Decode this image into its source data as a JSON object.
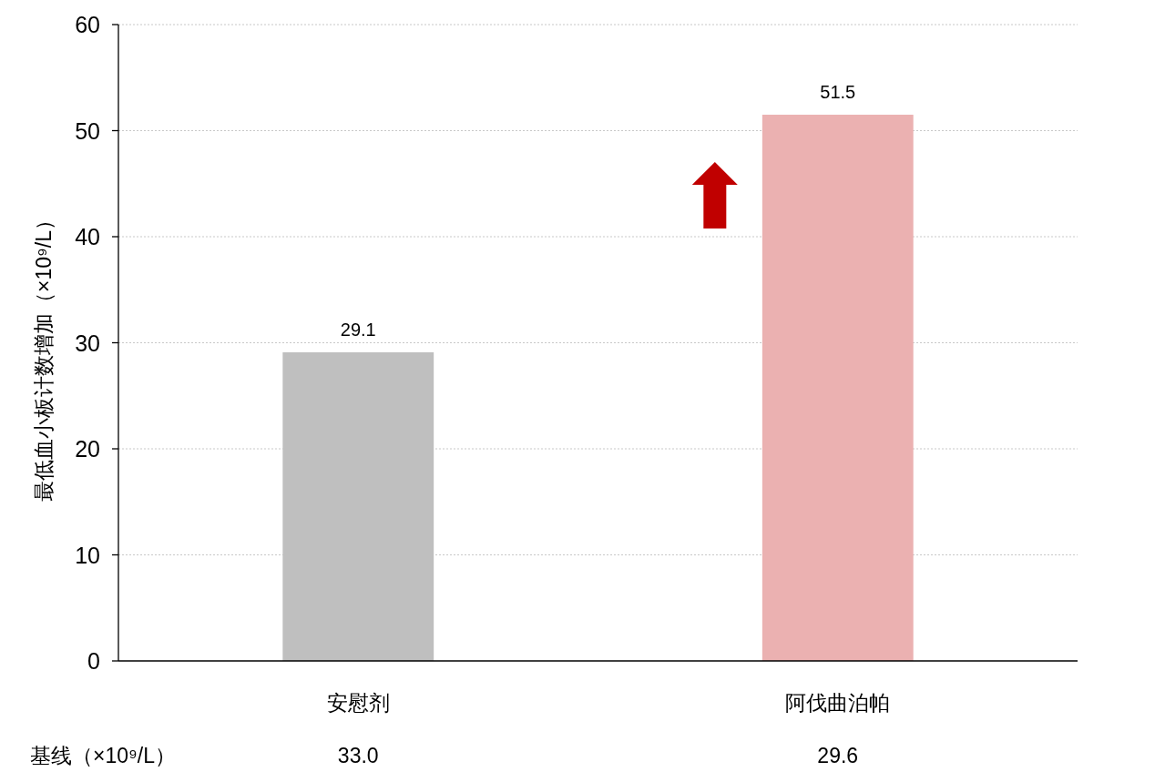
{
  "chart_data": {
    "type": "bar",
    "ylabel": "最低血小板计数增加（×10⁹/L）",
    "categories": [
      "安慰剂",
      "阿伐曲泊帕"
    ],
    "values": [
      29.1,
      51.5
    ],
    "colors": [
      "#bfbfbf",
      "#ebb1b1"
    ],
    "ylim": [
      0,
      60
    ],
    "yticks": [
      0,
      10,
      20,
      30,
      40,
      50,
      60
    ],
    "grid": "y",
    "data_labels": true,
    "annotations": [
      "基线（×10⁹/L）",
      "33.0",
      "29.6"
    ]
  }
}
